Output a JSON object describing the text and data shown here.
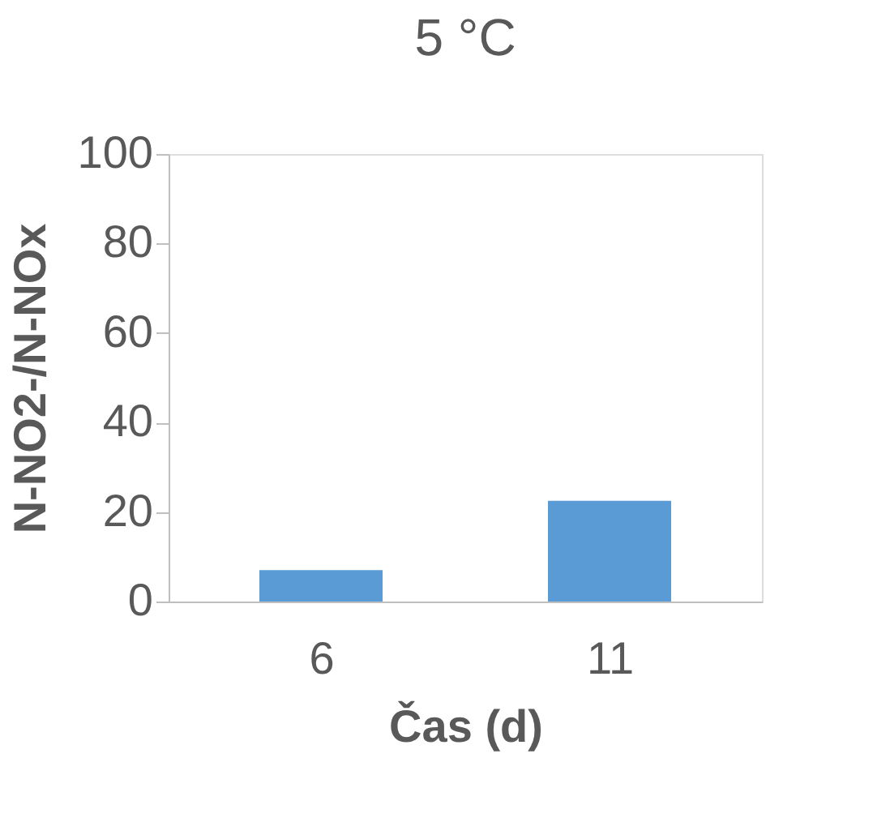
{
  "chart_data": {
    "type": "bar",
    "title": "5 °C",
    "xlabel": "Čas (d)",
    "ylabel": "N-NO2-/N-NOx",
    "categories": [
      "6",
      "11"
    ],
    "series": [
      {
        "color": "#5b9bd5",
        "values": [
          7,
          22.5
        ]
      }
    ],
    "ylim": [
      0,
      100
    ],
    "yticks": [
      0,
      20,
      40,
      60,
      80,
      100
    ],
    "grid": false,
    "legend": false
  }
}
